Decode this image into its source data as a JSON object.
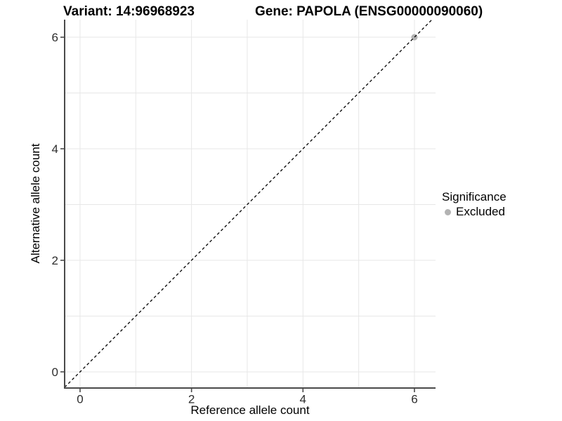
{
  "titles": {
    "variant": "Variant: 14:96968923",
    "gene": "Gene: PAPOLA (ENSG00000090060)"
  },
  "chart_data": {
    "type": "scatter",
    "title": "Variant: 14:96968923    Gene: PAPOLA (ENSG00000090060)",
    "xlabel": "Reference allele count",
    "ylabel": "Alternative allele count",
    "legend_title": "Significance",
    "legend_position": "right",
    "xlim": [
      -0.277,
      6.379
    ],
    "ylim": [
      -0.29,
      6.315
    ],
    "x_ticks": [
      0,
      2,
      4,
      6
    ],
    "y_ticks": [
      0,
      2,
      4,
      6
    ],
    "x_gridlines": [
      0,
      1,
      2,
      3,
      4,
      5,
      6
    ],
    "y_gridlines": [
      0,
      1,
      2,
      3,
      4,
      5,
      6
    ],
    "grid": "on",
    "series": [
      {
        "name": "Excluded",
        "color": "#b3b3b3",
        "points": [
          [
            6,
            6
          ]
        ]
      }
    ],
    "reference_line": {
      "type": "identity y=x",
      "style": "dashed",
      "color": "#000000",
      "from": -0.277,
      "to": 6.315
    },
    "colors": {
      "grid": "#e7e7e7",
      "axis": "#4a4a4a",
      "tick_label": "#2e2e2e",
      "background": "#ffffff"
    }
  }
}
